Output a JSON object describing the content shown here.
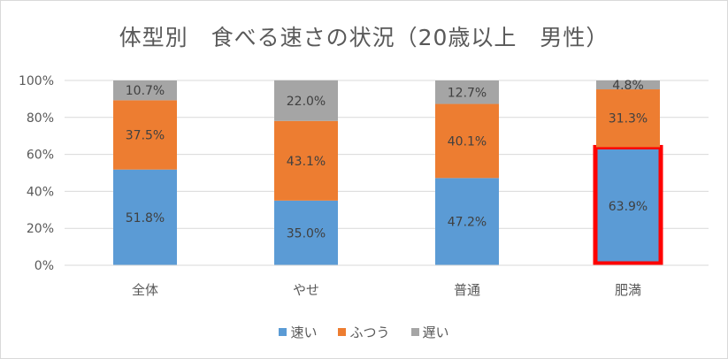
{
  "chart_data": {
    "type": "bar",
    "stacked": true,
    "title": "体型別　食べる速さの状況（20歳以上　男性）",
    "categories": [
      "全体",
      "やせ",
      "普通",
      "肥満"
    ],
    "series": [
      {
        "name": "速い",
        "color": "#5b9bd5",
        "values": [
          51.8,
          35.0,
          47.2,
          63.9
        ],
        "labels": [
          "51.8%",
          "35.0%",
          "47.2%",
          "63.9%"
        ]
      },
      {
        "name": "ふつう",
        "color": "#ed7d31",
        "values": [
          37.5,
          43.1,
          40.1,
          31.3
        ],
        "labels": [
          "37.5%",
          "43.1%",
          "40.1%",
          "31.3%"
        ]
      },
      {
        "name": "遅い",
        "color": "#a5a5a5",
        "values": [
          10.7,
          22.0,
          12.7,
          4.8
        ],
        "labels": [
          "10.7%",
          "22.0%",
          "12.7%",
          "4.8%"
        ]
      }
    ],
    "ylim": [
      0,
      100
    ],
    "yticks": [
      "0%",
      "20%",
      "40%",
      "60%",
      "80%",
      "100%"
    ],
    "grid": true,
    "legend_position": "bottom",
    "highlight": {
      "category": "肥満",
      "series": "速い",
      "color": "#ff0000"
    }
  }
}
